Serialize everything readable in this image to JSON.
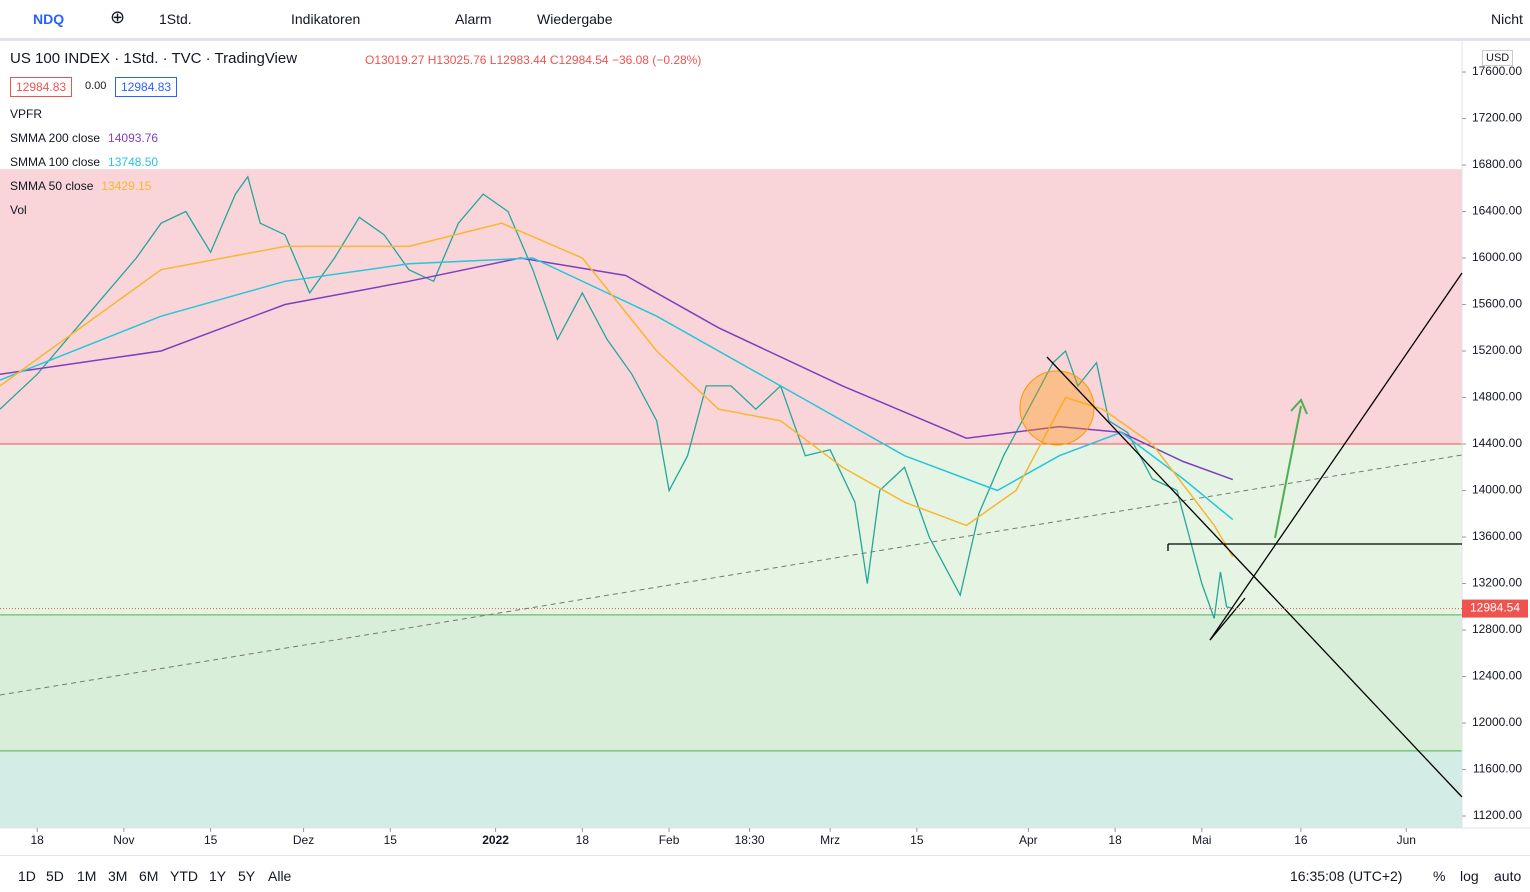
{
  "toolbar": {
    "symbol": "NDQ",
    "interval": "1Std.",
    "indicators": "Indikatoren",
    "alarm": "Alarm",
    "replay": "Wiedergabe",
    "cloud": "Nicht"
  },
  "legend": {
    "title": "US 100 INDEX · 1Std. · TVC · TradingView",
    "open": "O13019.27",
    "high": "H13025.76",
    "low": "L12983.44",
    "close": "C12984.54",
    "change": "−36.08 (−0.28%)",
    "bid": "12984.83",
    "spread": "0.00",
    "ask": "12984.83",
    "vpfr": "VPFR",
    "vol": "Vol"
  },
  "currency": "USD",
  "chart_data": {
    "type": "line",
    "xlim": [
      -6,
      230
    ],
    "ylim": [
      11097,
      17867
    ],
    "xticks": [
      {
        "value": 0,
        "label": "18"
      },
      {
        "value": 14,
        "label": "Nov"
      },
      {
        "value": 28,
        "label": "15"
      },
      {
        "value": 43,
        "label": "Dez"
      },
      {
        "value": 57,
        "label": "15"
      },
      {
        "value": 74,
        "label": "2022"
      },
      {
        "value": 88,
        "label": "18"
      },
      {
        "value": 102,
        "label": "Feb"
      },
      {
        "value": 115,
        "label": "18:30"
      },
      {
        "value": 128,
        "label": "Mrz"
      },
      {
        "value": 142,
        "label": "15"
      },
      {
        "value": 160,
        "label": "Apr"
      },
      {
        "value": 174,
        "label": "18"
      },
      {
        "value": 188,
        "label": "Mai"
      },
      {
        "value": 204,
        "label": "16"
      },
      {
        "value": 221,
        "label": "Jun"
      }
    ],
    "yticks": [
      {
        "value": 17600,
        "label": "17600.00"
      },
      {
        "value": 17200,
        "label": "17200.00"
      },
      {
        "value": 16800,
        "label": "16800.00"
      },
      {
        "value": 16400,
        "label": "16400.00"
      },
      {
        "value": 16000,
        "label": "16000.00"
      },
      {
        "value": 15600,
        "label": "15600.00"
      },
      {
        "value": 15200,
        "label": "15200.00"
      },
      {
        "value": 14800,
        "label": "14800.00"
      },
      {
        "value": 14400,
        "label": "14400.00"
      },
      {
        "value": 14000,
        "label": "14000.00"
      },
      {
        "value": 13600,
        "label": "13600.00"
      },
      {
        "value": 13200,
        "label": "13200.00"
      },
      {
        "value": 12800,
        "label": "12800.00"
      },
      {
        "value": 12400,
        "label": "12400.00"
      },
      {
        "value": 12000,
        "label": "12000.00"
      },
      {
        "value": 11600,
        "label": "11600.00"
      },
      {
        "value": 11200,
        "label": "11200.00"
      }
    ],
    "levels": [
      16760,
      14400,
      12930,
      11760
    ],
    "last_price": 12984.54,
    "series": [
      {
        "color": "#26a69a",
        "x": [
          -6,
          -3,
          0,
          4,
          8,
          12,
          16,
          20,
          24,
          28,
          32,
          34,
          36,
          40,
          44,
          48,
          52,
          56,
          60,
          64,
          68,
          72,
          76,
          80,
          84,
          88,
          92,
          96,
          100,
          102,
          105,
          108,
          112,
          116,
          120,
          124,
          128,
          132,
          134,
          136,
          140,
          144,
          147,
          149,
          152,
          156,
          160,
          164,
          166,
          168,
          171,
          173,
          176,
          180,
          184,
          186,
          188,
          190,
          191,
          192,
          193
        ],
        "values": [
          14700,
          14850,
          15000,
          15250,
          15500,
          15750,
          16000,
          16300,
          16400,
          16050,
          16550,
          16700,
          16300,
          16200,
          15700,
          16000,
          16350,
          16200,
          15900,
          15800,
          16300,
          16550,
          16400,
          15900,
          15300,
          15700,
          15300,
          15000,
          14600,
          14000,
          14300,
          14900,
          14900,
          14700,
          14900,
          14300,
          14350,
          13900,
          13200,
          14000,
          14200,
          13600,
          13300,
          13100,
          13800,
          14300,
          14700,
          15100,
          15200,
          14900,
          15100,
          14600,
          14500,
          14100,
          14000,
          13600,
          13200,
          12900,
          13300,
          13000,
          12985
        ]
      },
      {
        "name": "SMMA 200 close",
        "legend_value": "14093.76",
        "color": "#7e3fbf",
        "x": [
          -6,
          20,
          40,
          60,
          78,
          95,
          110,
          130,
          150,
          165,
          175,
          185,
          193
        ],
        "values": [
          15000,
          15200,
          15600,
          15800,
          16000,
          15850,
          15400,
          14900,
          14450,
          14550,
          14500,
          14250,
          14094
        ]
      },
      {
        "name": "SMMA 100 close",
        "legend_value": "13748.50",
        "color": "#26c6da",
        "x": [
          -6,
          20,
          40,
          60,
          80,
          100,
          120,
          140,
          155,
          165,
          175,
          185,
          193
        ],
        "values": [
          14950,
          15500,
          15800,
          15950,
          16000,
          15500,
          14900,
          14300,
          14000,
          14300,
          14500,
          14100,
          13750
        ]
      },
      {
        "name": "SMMA 50 close",
        "legend_value": "13429.15",
        "color": "#f7b731",
        "x": [
          -6,
          20,
          40,
          60,
          75,
          88,
          100,
          110,
          120,
          130,
          140,
          150,
          158,
          166,
          172,
          180,
          190,
          193
        ],
        "values": [
          14900,
          15900,
          16100,
          16100,
          16300,
          16000,
          15200,
          14700,
          14600,
          14200,
          13900,
          13700,
          14000,
          14800,
          14700,
          14400,
          13700,
          13430
        ]
      }
    ],
    "last_price_label": "12984.54"
  },
  "bottom_bar": {
    "ranges": [
      "1D",
      "5D",
      "1M",
      "3M",
      "6M",
      "YTD",
      "1Y",
      "5Y",
      "Alle"
    ],
    "time": "16:35:08 (UTC+2)",
    "percent": "%",
    "log": "log",
    "auto": "auto"
  }
}
